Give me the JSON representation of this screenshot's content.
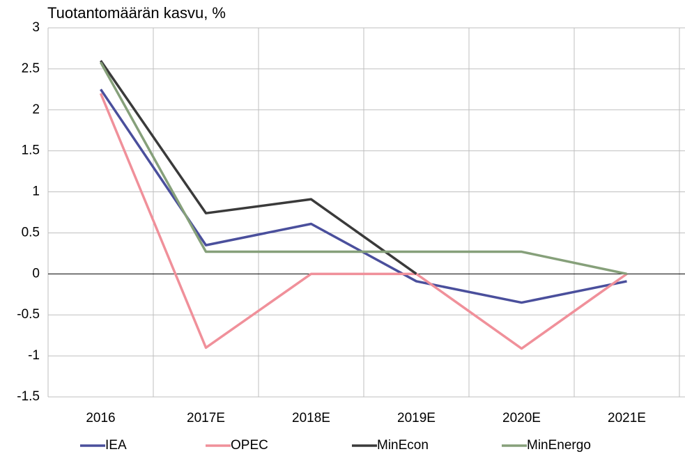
{
  "chart_data": {
    "type": "line",
    "title": "Tuotantomäärän kasvu, %",
    "categories": [
      "2016",
      "2017E",
      "2018E",
      "2019E",
      "2020E",
      "2021E"
    ],
    "series": [
      {
        "name": "IEA",
        "color": "#4a4f9c",
        "values": [
          2.25,
          0.35,
          0.61,
          -0.09,
          -0.35,
          -0.09
        ]
      },
      {
        "name": "OPEC",
        "color": "#f0909a",
        "values": [
          2.2,
          -0.9,
          0,
          0,
          -0.91,
          0
        ]
      },
      {
        "name": "MinEcon",
        "color": "#3a3a3a",
        "values": [
          2.6,
          0.74,
          0.91,
          0,
          null,
          null
        ]
      },
      {
        "name": "MinEnergo",
        "color": "#86a07a",
        "values": [
          2.58,
          0.27,
          0.27,
          0.27,
          0.27,
          0
        ]
      }
    ],
    "ylim": [
      -1.5,
      3
    ],
    "yticks": [
      -1.5,
      -1,
      -0.5,
      0,
      0.5,
      1,
      1.5,
      2,
      2.5,
      3
    ],
    "grid": true,
    "legend": "bottom"
  }
}
